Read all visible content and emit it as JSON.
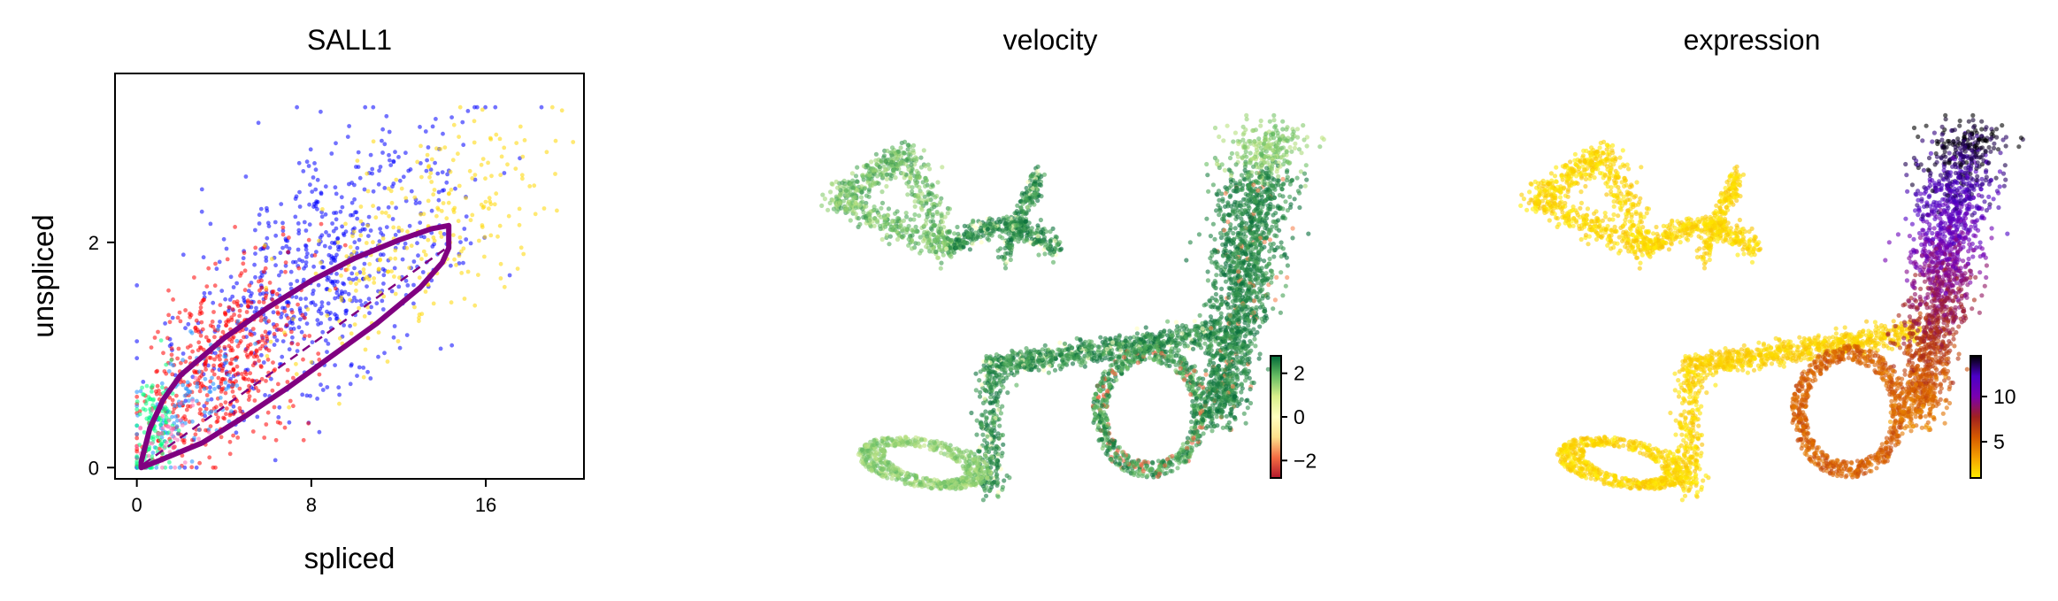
{
  "chart_data": [
    {
      "type": "scatter",
      "title": "SALL1",
      "xlabel": "spliced",
      "ylabel": "unspliced",
      "xlim": [
        -1,
        20.5
      ],
      "ylim": [
        -0.1,
        3.5
      ],
      "xticks": [
        "0",
        "8",
        "16"
      ],
      "yticks": [
        "0",
        "2"
      ],
      "grid": false,
      "series": [
        {
          "color": "#0000ff",
          "center": [
            8.5,
            1.7
          ],
          "spread": [
            3.2,
            0.55
          ],
          "count": 650
        },
        {
          "color": "#ff0000",
          "center": [
            4.0,
            0.95
          ],
          "spread": [
            1.8,
            0.4
          ],
          "count": 520
        },
        {
          "color": "#ffd700",
          "center": [
            13.0,
            2.1
          ],
          "spread": [
            3.0,
            0.45
          ],
          "count": 260
        },
        {
          "color": "#1e90ff",
          "center": [
            2.2,
            0.55
          ],
          "spread": [
            1.3,
            0.3
          ],
          "count": 120
        },
        {
          "color": "#00ff7f",
          "center": [
            0.8,
            0.35
          ],
          "spread": [
            0.5,
            0.25
          ],
          "count": 130
        },
        {
          "color": "#ff69b4",
          "center": [
            1.5,
            0.3
          ],
          "spread": [
            0.9,
            0.2
          ],
          "count": 40
        }
      ],
      "fit_curve_color": "#800080",
      "fit_loop": {
        "upper": [
          [
            0.2,
            0.05
          ],
          [
            0.6,
            0.35
          ],
          [
            1.2,
            0.6
          ],
          [
            2.0,
            0.82
          ],
          [
            4.0,
            1.15
          ],
          [
            6.0,
            1.42
          ],
          [
            8.0,
            1.66
          ],
          [
            10.0,
            1.86
          ],
          [
            12.0,
            2.02
          ],
          [
            13.5,
            2.12
          ],
          [
            14.3,
            2.15
          ]
        ],
        "lower": [
          [
            14.3,
            2.15
          ],
          [
            14.3,
            1.95
          ],
          [
            14.0,
            1.82
          ],
          [
            13.0,
            1.6
          ],
          [
            11.0,
            1.28
          ],
          [
            9.0,
            1.0
          ],
          [
            7.0,
            0.72
          ],
          [
            5.0,
            0.46
          ],
          [
            3.0,
            0.22
          ],
          [
            1.0,
            0.06
          ],
          [
            0.2,
            0.0
          ]
        ]
      },
      "fit_dashed_line": [
        [
          0.3,
          0.03
        ],
        [
          14.2,
          1.95
        ]
      ]
    },
    {
      "type": "scatter",
      "title": "velocity",
      "colorbar": {
        "ticks": [
          "2",
          "0",
          "−2"
        ],
        "range": [
          -2.8,
          2.8
        ],
        "colormap": [
          "#b2182b",
          "#f46d43",
          "#fee08b",
          "#ffffbf",
          "#d9ef8b",
          "#66bd63",
          "#006837"
        ]
      },
      "embedding": "umap"
    },
    {
      "type": "scatter",
      "title": "expression",
      "colorbar": {
        "ticks": [
          "10",
          "5"
        ],
        "range": [
          1,
          14.5
        ],
        "colormap": [
          "#ffee00",
          "#f5a000",
          "#d55a00",
          "#a02020",
          "#7a00b0",
          "#4b00c8",
          "#000000"
        ]
      },
      "embedding": "umap"
    }
  ]
}
